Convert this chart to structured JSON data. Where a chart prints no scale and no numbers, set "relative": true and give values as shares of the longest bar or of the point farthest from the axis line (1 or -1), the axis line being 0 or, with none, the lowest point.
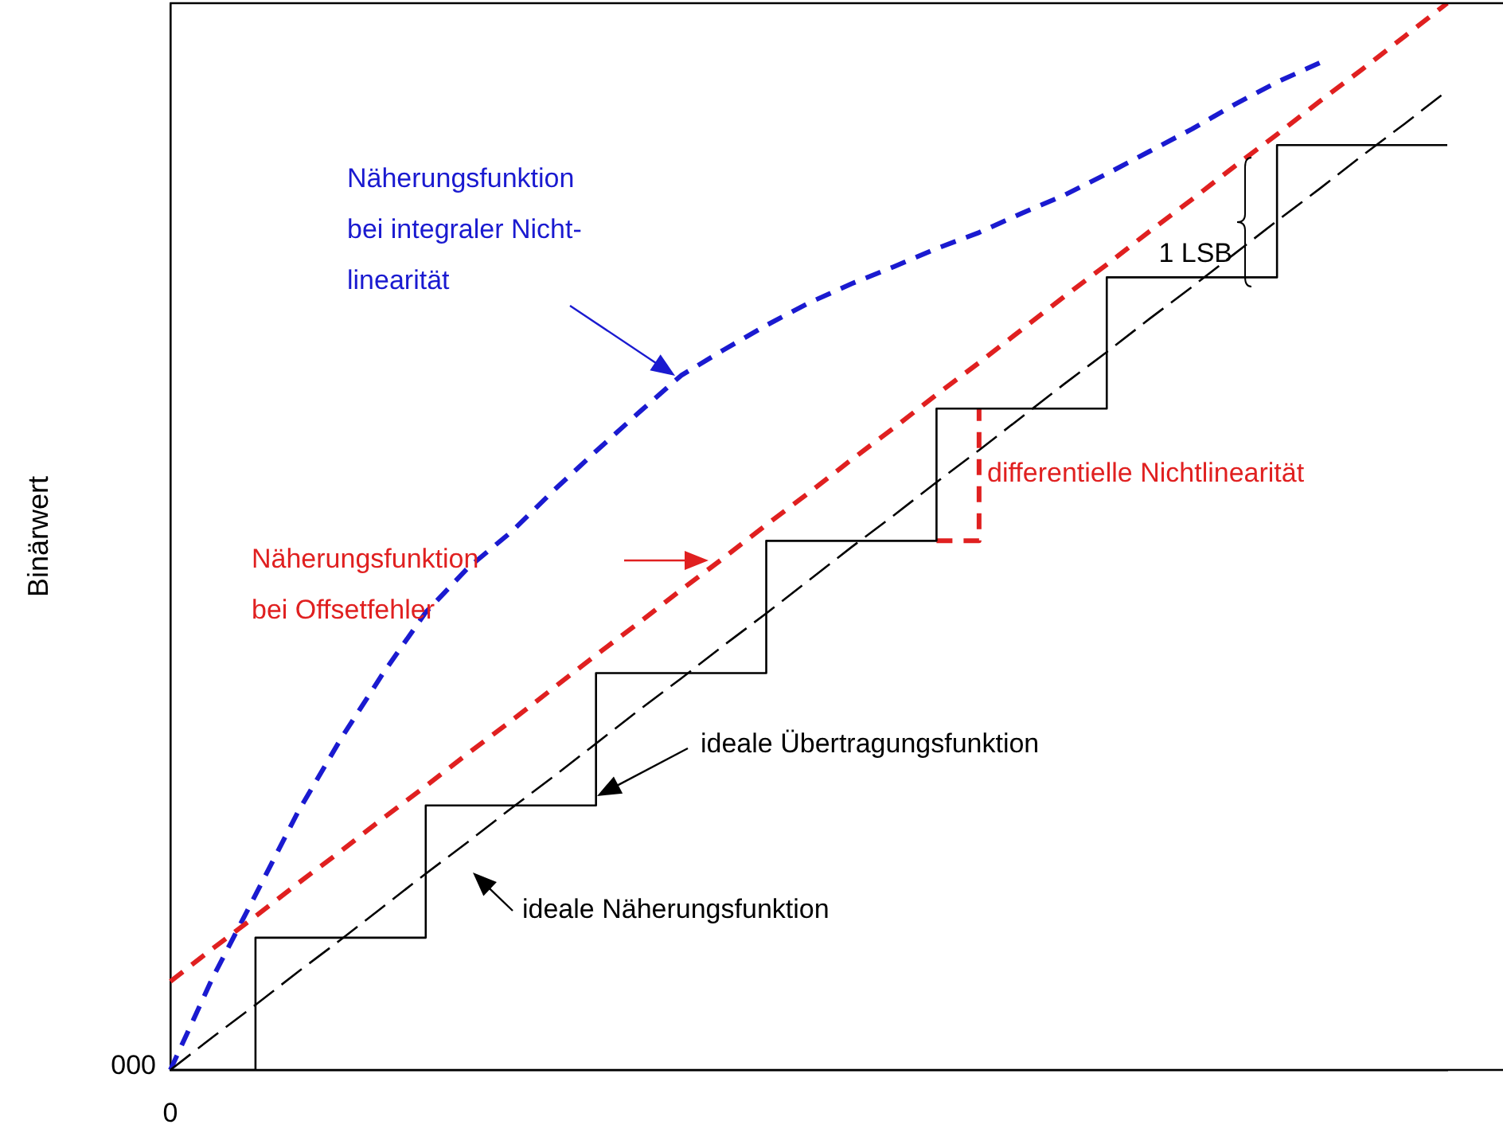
{
  "chart_data": {
    "type": "line",
    "ylabel": "Binärwert",
    "relative": true,
    "legend": false,
    "grid": false,
    "marker": "none",
    "categories": [
      null,
      null,
      null,
      null,
      null,
      null,
      null,
      null,
      null,
      null,
      null,
      null,
      null,
      null,
      null,
      null,
      null,
      null,
      null,
      null,
      null,
      null,
      null,
      null,
      null,
      null,
      null,
      null,
      null,
      null,
      null
    ],
    "series": [
      {
        "type": "step",
        "color": "#000000",
        "line_style": "solid",
        "values": [
          0,
          0,
          0.124,
          0.124,
          0.124,
          0.124,
          0.248,
          0.248,
          0.248,
          0.248,
          0.372,
          0.372,
          0.372,
          0.372,
          0.496,
          0.496,
          0.496,
          0.496,
          0.62,
          0.62,
          0.62,
          0.62,
          0.743,
          0.743,
          0.743,
          0.743,
          0.867,
          0.867,
          0.867,
          0.867,
          0.867
        ]
      },
      {
        "color": "#000000",
        "line_style": "dashed",
        "values": [
          0,
          0.031,
          0.061,
          0.092,
          0.122,
          0.153,
          0.184,
          0.214,
          0.245,
          0.275,
          0.306,
          0.337,
          0.367,
          0.398,
          0.428,
          0.459,
          0.49,
          0.52,
          0.551,
          0.581,
          0.612,
          0.643,
          0.673,
          0.704,
          0.734,
          0.765,
          0.796,
          0.826,
          0.857,
          0.887,
          0.918
        ]
      },
      {
        "color": "#e02020",
        "line_style": "dashed",
        "values": [
          0.083,
          0.114,
          0.144,
          0.175,
          0.205,
          0.236,
          0.266,
          0.297,
          0.327,
          0.358,
          0.389,
          0.419,
          0.45,
          0.48,
          0.511,
          0.541,
          0.572,
          0.602,
          0.633,
          0.663,
          0.694,
          0.725,
          0.755,
          0.786,
          0.816,
          0.847,
          0.877,
          0.908,
          0.938,
          0.969,
          1
        ]
      },
      {
        "color": "#1a1ad0",
        "line_style": "dashed",
        "values": [
          0,
          0.087,
          0.164,
          0.242,
          0.31,
          0.372,
          0.429,
          0.471,
          0.504,
          0.543,
          0.58,
          0.616,
          0.651,
          0.675,
          0.698,
          0.719,
          0.737,
          0.753,
          0.77,
          0.785,
          0.803,
          0.82,
          0.84,
          0.861,
          0.882,
          0.905,
          0.926,
          0.944,
          null,
          null,
          null
        ]
      },
      {
        "type": "step",
        "color": "#e02020",
        "line_style": "dashed",
        "values": [
          null,
          null,
          null,
          null,
          null,
          null,
          null,
          null,
          null,
          null,
          null,
          null,
          null,
          null,
          null,
          null,
          null,
          null,
          0.496,
          0.62,
          null,
          null,
          null,
          null,
          null,
          null,
          null,
          null,
          null,
          null,
          null
        ]
      }
    ],
    "annotations": [
      "Näherungsfunktion\nbei integraler Nicht-\nlinearität",
      "Näherungsfunktion\nbei Offsetfehler",
      "differentielle Nichtlinearität",
      "ideale Übertragungsfunktion",
      "ideale Näherungsfunktion",
      "1 LSB",
      "000",
      "0"
    ]
  }
}
